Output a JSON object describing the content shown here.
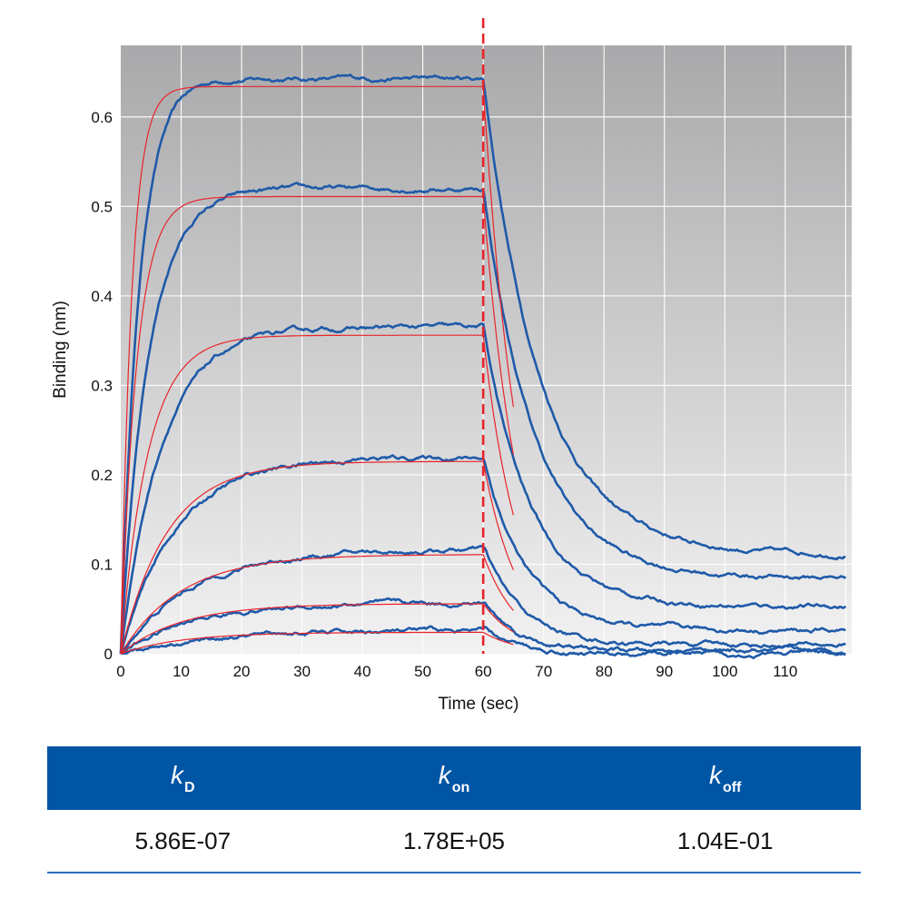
{
  "chart_data": {
    "type": "line",
    "title": "",
    "xlabel": "Time (sec)",
    "ylabel": "Binding (nm)",
    "xlim": [
      0,
      121
    ],
    "ylim": [
      0,
      0.68
    ],
    "x_ticks": [
      0,
      10,
      20,
      30,
      40,
      50,
      60,
      70,
      80,
      90,
      100,
      110
    ],
    "y_ticks": [
      0,
      0.1,
      0.2,
      0.3,
      0.4,
      0.5,
      0.6
    ],
    "y_tick_labels": [
      "0",
      "0.1",
      "0.2",
      "0.3",
      "0.4",
      "0.5",
      "0.6"
    ],
    "grid": true,
    "association_end": 60,
    "series": [
      {
        "plateau": 0.645,
        "fit_plateau": 0.634,
        "end": 0.111,
        "k_assoc": 0.33,
        "fit_k_assoc": 0.55
      },
      {
        "plateau": 0.522,
        "fit_plateau": 0.511,
        "end": 0.085,
        "k_assoc": 0.22,
        "fit_k_assoc": 0.38
      },
      {
        "plateau": 0.367,
        "fit_plateau": 0.356,
        "end": 0.053,
        "k_assoc": 0.15,
        "fit_k_assoc": 0.22
      },
      {
        "plateau": 0.222,
        "fit_plateau": 0.215,
        "end": 0.026,
        "k_assoc": 0.11,
        "fit_k_assoc": 0.13
      },
      {
        "plateau": 0.119,
        "fit_plateau": 0.111,
        "end": 0.01,
        "k_assoc": 0.085,
        "fit_k_assoc": 0.1
      },
      {
        "plateau": 0.059,
        "fit_plateau": 0.056,
        "end": 0.002,
        "k_assoc": 0.085,
        "fit_k_assoc": 0.1
      },
      {
        "plateau": 0.027,
        "fit_plateau": 0.024,
        "end": 0.0,
        "k_assoc": 0.085,
        "fit_k_assoc": 0.1
      }
    ],
    "colors": {
      "data": "#1f5aa8",
      "fit": "#e8242a",
      "divider": "#e8242a",
      "grid": "#ffffff",
      "background_top": "#a9a9ab",
      "background_bottom": "#f2f2f3"
    }
  },
  "table": {
    "headers": [
      {
        "symbol": "k",
        "subscript": "D"
      },
      {
        "symbol": "k",
        "subscript": "on"
      },
      {
        "symbol": "k",
        "subscript": "off"
      }
    ],
    "values": [
      "5.86E-07",
      "1.78E+05",
      "1.04E-01"
    ]
  }
}
